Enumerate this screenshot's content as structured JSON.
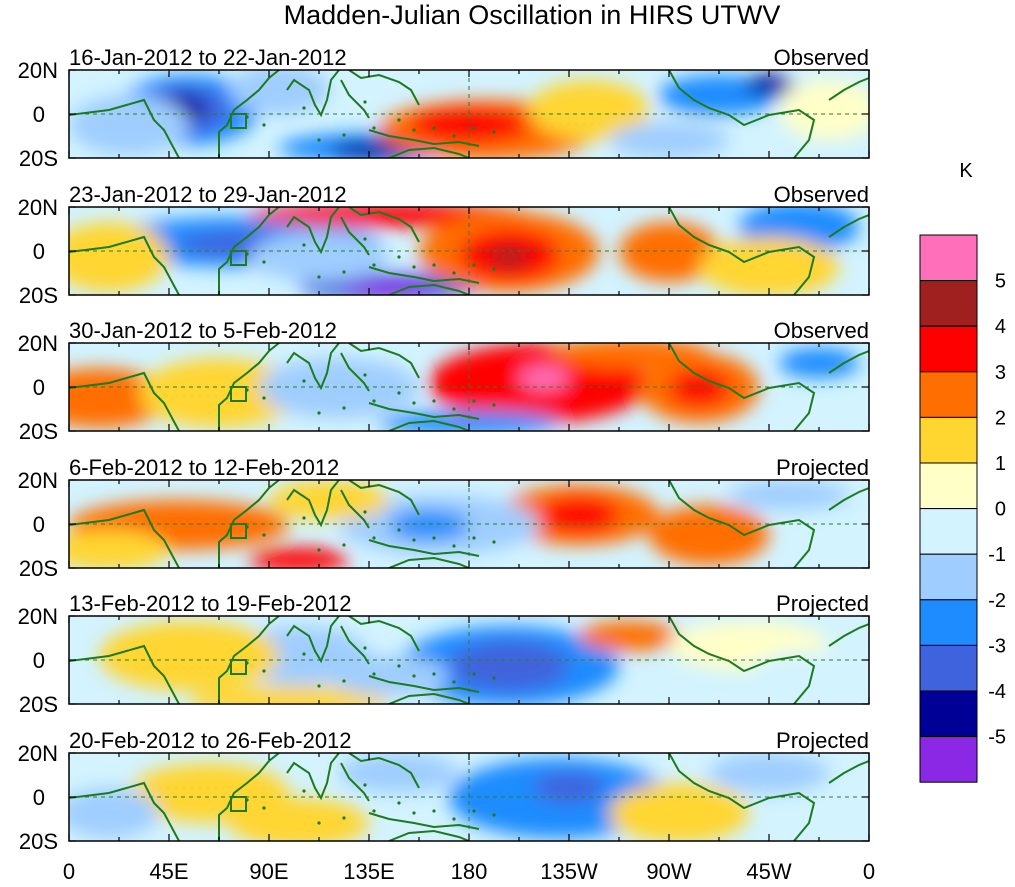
{
  "title": "Madden-Julian Oscillation in HIRS UTWV",
  "unit": "K",
  "y_ticks": [
    "20N",
    "0",
    "20S"
  ],
  "x_ticks": [
    "0",
    "45E",
    "90E",
    "135E",
    "180",
    "135W",
    "90W",
    "45W",
    "0"
  ],
  "panels": [
    {
      "date_range": "16-Jan-2012 to 22-Jan-2012",
      "status": "Observed"
    },
    {
      "date_range": "23-Jan-2012 to 29-Jan-2012",
      "status": "Observed"
    },
    {
      "date_range": "30-Jan-2012 to 5-Feb-2012",
      "status": "Observed"
    },
    {
      "date_range": "6-Feb-2012 to 12-Feb-2012",
      "status": "Projected"
    },
    {
      "date_range": "13-Feb-2012 to 19-Feb-2012",
      "status": "Projected"
    },
    {
      "date_range": "20-Feb-2012 to 26-Feb-2012",
      "status": "Projected"
    }
  ],
  "colorbar": {
    "labels": [
      "5",
      "4",
      "3",
      "2",
      "1",
      "0",
      "-1",
      "-2",
      "-3",
      "-4",
      "-5"
    ],
    "colors": [
      "#ff6fba",
      "#a02020",
      "#ff0000",
      "#ff6e00",
      "#ffd630",
      "#ffffc8",
      "#d2f3ff",
      "#9fcdff",
      "#1e8cff",
      "#3f63dc",
      "#000096",
      "#8a28e6"
    ]
  }
}
